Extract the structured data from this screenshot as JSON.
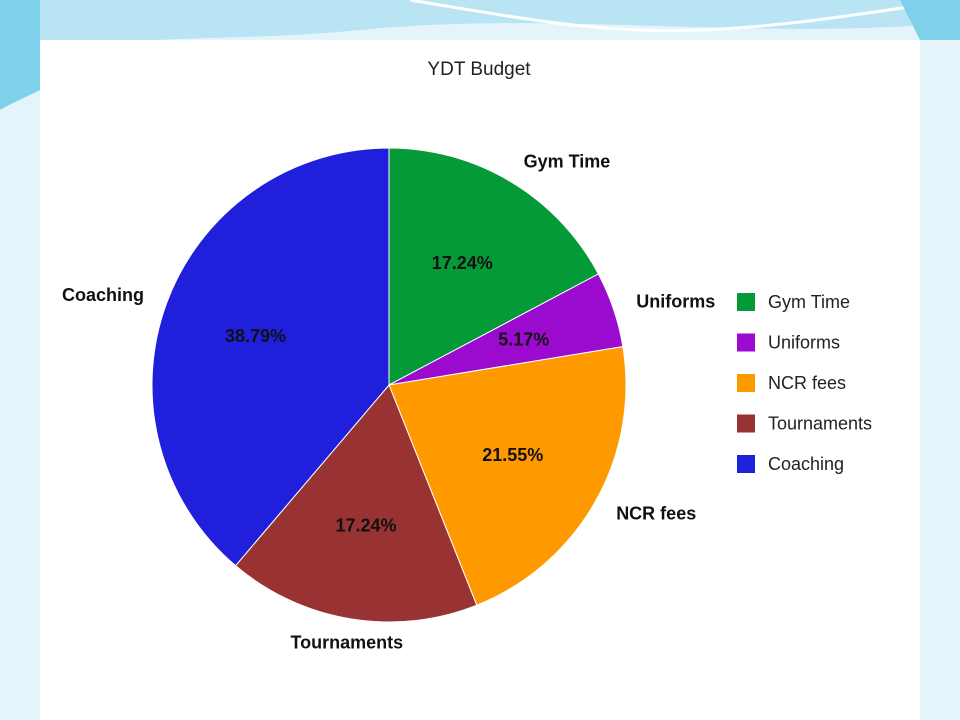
{
  "slide": {
    "background_color": "#e4f4fa",
    "wave_color": "#5cc4e4",
    "wave_light_color": "#a8dcef"
  },
  "chart_data": {
    "type": "pie",
    "title": "YDT Budget",
    "categories": [
      "Gym Time",
      "Uniforms",
      "NCR fees",
      "Tournaments",
      "Coaching"
    ],
    "values": [
      17.24,
      5.17,
      21.55,
      17.24,
      38.79
    ],
    "value_labels": [
      "17.24%",
      "5.17%",
      "21.55%",
      "17.24%",
      "38.79%"
    ],
    "colors": [
      "#049a37",
      "#9b0acf",
      "#ff9900",
      "#993333",
      "#1f1fdc"
    ],
    "start_angle": "12 o'clock",
    "direction": "clockwise",
    "legend_position": "right"
  }
}
